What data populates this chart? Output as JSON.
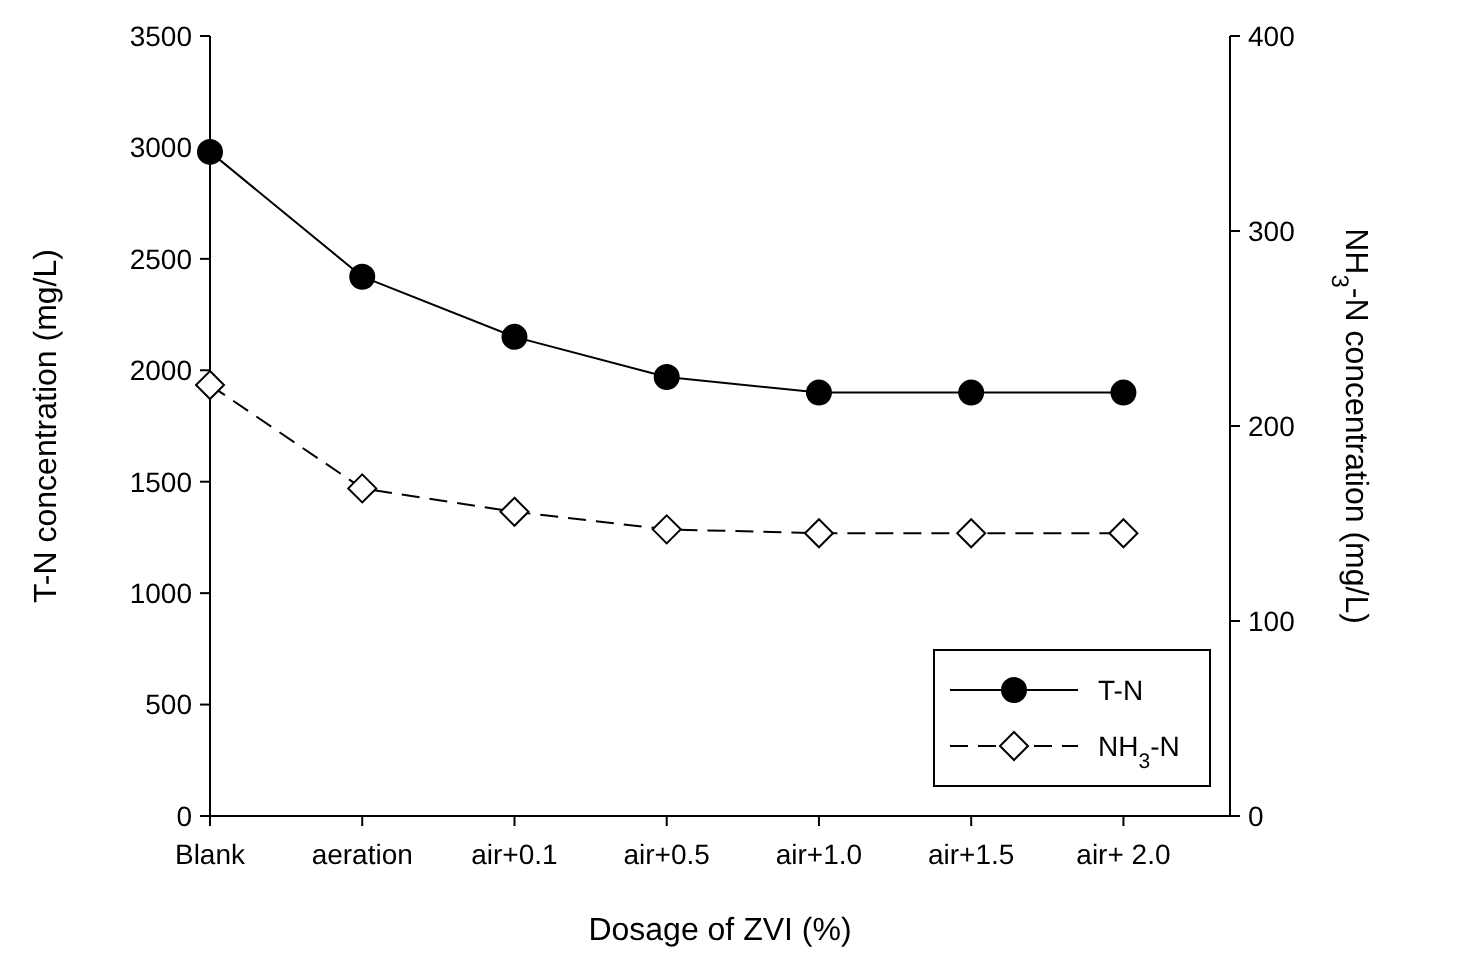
{
  "chart_data": {
    "type": "line",
    "xlabel": "Dosage of ZVI (%)",
    "ylabel": "T-N concentration (mg/L)",
    "y2label": "NH$_{3}$-N concentration (mg/L)",
    "categories": [
      "Blank",
      "aeration",
      "air+0.1",
      "air+0.5",
      "air+1.0",
      "air+1.5",
      "air+ 2.0"
    ],
    "ylim": [
      0,
      3500
    ],
    "yticks": [
      0,
      500,
      1000,
      1500,
      2000,
      2500,
      3000,
      3500
    ],
    "y2lim": [
      0,
      400
    ],
    "y2ticks": [
      0,
      100,
      200,
      300,
      400
    ],
    "legend": "bottom right",
    "grid": false,
    "series": [
      {
        "name": "T-N",
        "color": "#000000",
        "marker": "circle",
        "line_style": "solid",
        "values": [
          2980,
          2420,
          2150,
          1970,
          1900,
          1900,
          1900
        ]
      },
      {
        "name": "NH$_{3}$-N",
        "color": "#000000",
        "marker": "diamond",
        "line_style": "dashed",
        "axis": "y2",
        "values": [
          221,
          168,
          156,
          147,
          145,
          145,
          145
        ]
      }
    ]
  }
}
